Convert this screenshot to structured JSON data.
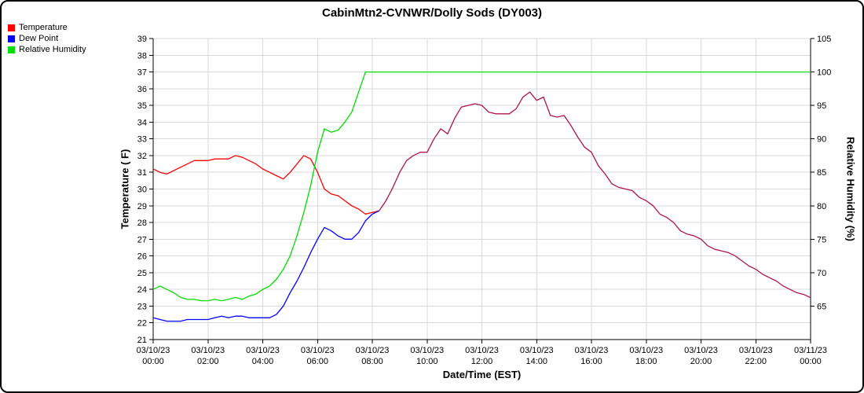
{
  "window": {
    "title": "CabinMtn2-CVNWR/Dolly Sods (DY003)"
  },
  "legend": [
    {
      "label": "Temperature",
      "color": "#ff0000"
    },
    {
      "label": "Dew Point",
      "color": "#0000ff"
    },
    {
      "label": "Relative Humidity",
      "color": "#00dd00"
    }
  ],
  "axes": {
    "left_label": "Temperature ( F)",
    "right_label": "Relative Humidity (%)",
    "x_label": "Date/Time (EST)"
  },
  "chart_data": {
    "type": "line",
    "title": "CabinMtn2-CVNWR/Dolly Sods (DY003)",
    "grid": true,
    "legend_position": "top-left",
    "x_range": [
      0,
      24
    ],
    "x_start": 0,
    "x_step": 0.25,
    "x_ticks": [
      {
        "hour": 0,
        "date": "03/10/23",
        "time": "00:00"
      },
      {
        "hour": 2,
        "date": "03/10/23",
        "time": "02:00"
      },
      {
        "hour": 4,
        "date": "03/10/23",
        "time": "04:00"
      },
      {
        "hour": 6,
        "date": "03/10/23",
        "time": "06:00"
      },
      {
        "hour": 8,
        "date": "03/10/23",
        "time": "08:00"
      },
      {
        "hour": 10,
        "date": "03/10/23",
        "time": "10:00"
      },
      {
        "hour": 12,
        "date": "03/10/23",
        "time": "12:00"
      },
      {
        "hour": 14,
        "date": "03/10/23",
        "time": "14:00"
      },
      {
        "hour": 16,
        "date": "03/10/23",
        "time": "16:00"
      },
      {
        "hour": 18,
        "date": "03/10/23",
        "time": "18:00"
      },
      {
        "hour": 20,
        "date": "03/10/23",
        "time": "20:00"
      },
      {
        "hour": 22,
        "date": "03/10/23",
        "time": "22:00"
      },
      {
        "hour": 24,
        "date": "03/11/23",
        "time": "00:00"
      }
    ],
    "left_axis": {
      "label": "Temperature ( F)",
      "min": 21,
      "max": 39,
      "ticks": [
        21,
        22,
        23,
        24,
        25,
        26,
        27,
        28,
        29,
        30,
        31,
        32,
        33,
        34,
        35,
        36,
        37,
        38,
        39
      ]
    },
    "right_axis": {
      "label": "Relative Humidity (%)",
      "min": 60,
      "max": 105,
      "ticks": [
        65,
        70,
        75,
        80,
        85,
        90,
        95,
        100,
        105
      ]
    },
    "merge_hour": 8.25,
    "overlap_color": "#b01349",
    "grid_color": "#d9d9d9",
    "axis_color": "#000000",
    "series": [
      {
        "name": "Temperature",
        "axis": "left",
        "color": "#ff0000",
        "values": [
          31.2,
          31.0,
          30.9,
          31.1,
          31.3,
          31.5,
          31.7,
          31.7,
          31.7,
          31.8,
          31.8,
          31.8,
          32.0,
          31.9,
          31.7,
          31.5,
          31.2,
          31.0,
          30.8,
          30.6,
          31.0,
          31.5,
          32.0,
          31.8,
          31.0,
          30.0,
          29.7,
          29.6,
          29.3,
          29.0,
          28.8,
          28.5,
          28.6,
          28.7,
          29.3,
          30.1,
          31.0,
          31.7,
          32.0,
          32.2,
          32.2,
          33.0,
          33.6,
          33.3,
          34.2,
          34.9,
          35.0,
          35.1,
          35.0,
          34.6,
          34.5,
          34.5,
          34.5,
          34.8,
          35.5,
          35.8,
          35.3,
          35.5,
          34.4,
          34.3,
          34.4,
          33.8,
          33.1,
          32.5,
          32.2,
          31.4,
          30.9,
          30.3,
          30.1,
          30.0,
          29.9,
          29.5,
          29.3,
          29.0,
          28.5,
          28.3,
          28.0,
          27.5,
          27.3,
          27.2,
          27.0,
          26.6,
          26.4,
          26.3,
          26.2,
          26.0,
          25.7,
          25.4,
          25.2,
          24.9,
          24.7,
          24.5,
          24.2,
          24.0,
          23.8,
          23.7,
          23.5
        ]
      },
      {
        "name": "Dew Point",
        "axis": "left",
        "color": "#0000ff",
        "values": [
          22.3,
          22.2,
          22.1,
          22.1,
          22.1,
          22.2,
          22.2,
          22.2,
          22.2,
          22.3,
          22.4,
          22.3,
          22.4,
          22.4,
          22.3,
          22.3,
          22.3,
          22.3,
          22.5,
          23.0,
          23.8,
          24.5,
          25.3,
          26.2,
          27.0,
          27.7,
          27.5,
          27.2,
          27.0,
          27.0,
          27.4,
          28.1,
          28.5,
          28.7,
          29.3,
          30.1,
          31.0,
          31.7,
          32.0,
          32.2,
          32.2,
          33.0,
          33.6,
          33.3,
          34.2,
          34.9,
          35.0,
          35.1,
          35.0,
          34.6,
          34.5,
          34.5,
          34.5,
          34.8,
          35.5,
          35.8,
          35.3,
          35.5,
          34.4,
          34.3,
          34.4,
          33.8,
          33.1,
          32.5,
          32.2,
          31.4,
          30.9,
          30.3,
          30.1,
          30.0,
          29.9,
          29.5,
          29.3,
          29.0,
          28.5,
          28.3,
          28.0,
          27.5,
          27.3,
          27.2,
          27.0,
          26.6,
          26.4,
          26.3,
          26.2,
          26.0,
          25.7,
          25.4,
          25.2,
          24.9,
          24.7,
          24.5,
          24.2,
          24.0,
          23.8,
          23.7,
          23.5
        ]
      },
      {
        "name": "Relative Humidity",
        "axis": "right",
        "color": "#00dd00",
        "values": [
          67.5,
          68.0,
          67.5,
          67.0,
          66.3,
          66.0,
          66.0,
          65.8,
          65.8,
          66.0,
          65.8,
          66.0,
          66.3,
          66.0,
          66.5,
          66.8,
          67.5,
          68.0,
          69.0,
          70.5,
          72.5,
          75.5,
          79.0,
          83.0,
          88.0,
          91.5,
          91.0,
          91.3,
          92.5,
          94.0,
          97.0,
          100,
          100,
          100,
          100,
          100,
          100,
          100,
          100,
          100,
          100,
          100,
          100,
          100,
          100,
          100,
          100,
          100,
          100,
          100,
          100,
          100,
          100,
          100,
          100,
          100,
          100,
          100,
          100,
          100,
          100,
          100,
          100,
          100,
          100,
          100,
          100,
          100,
          100,
          100,
          100,
          100,
          100,
          100,
          100,
          100,
          100,
          100,
          100,
          100,
          100,
          100,
          100,
          100,
          100,
          100,
          100,
          100,
          100,
          100,
          100,
          100,
          100,
          100,
          100,
          100,
          100
        ]
      }
    ]
  }
}
